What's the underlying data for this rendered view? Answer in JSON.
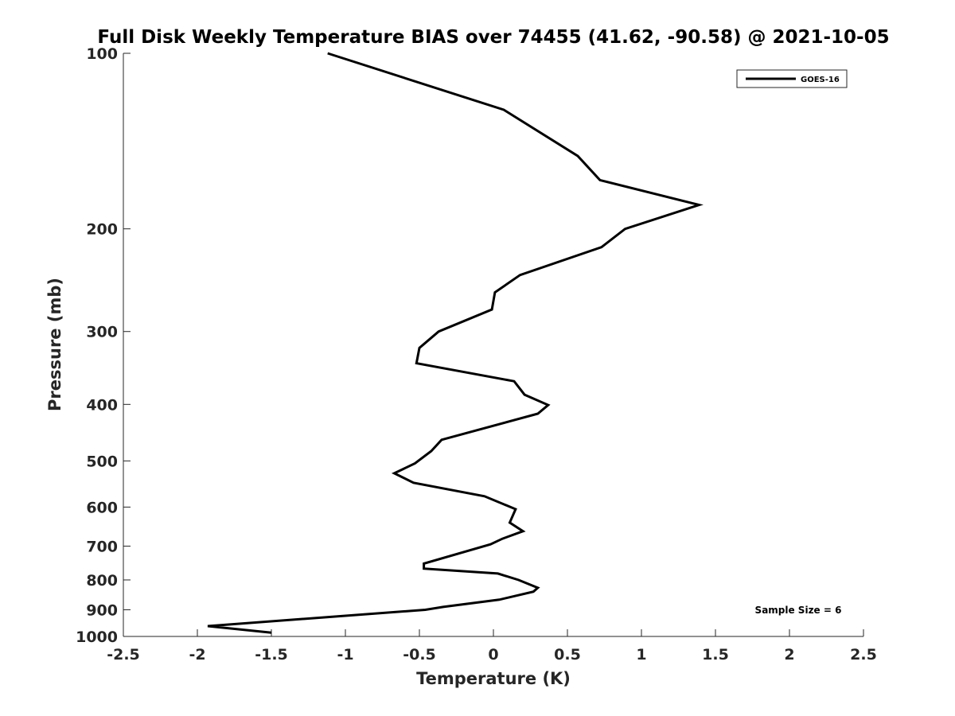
{
  "chart_data": {
    "type": "line",
    "title": "Full Disk Weekly Temperature BIAS over 74455 (41.62, -90.58) @ 2021-10-05",
    "xlabel": "Temperature (K)",
    "ylabel": "Pressure (mb)",
    "xlim": [
      -2.5,
      2.5
    ],
    "ylim": [
      100,
      1000
    ],
    "y_scale": "log",
    "y_reversed": true,
    "x_ticks": [
      "-2.5",
      "-2",
      "-1.5",
      "-1",
      "-0.5",
      "0",
      "0.5",
      "1",
      "1.5",
      "2",
      "2.5"
    ],
    "y_ticks": [
      "100",
      "200",
      "300",
      "400",
      "500",
      "600",
      "700",
      "800",
      "900",
      "1000"
    ],
    "grid": false,
    "legend": {
      "position": "top-right",
      "entries": [
        "GOES-16"
      ]
    },
    "annotation": "Sample Size = 6",
    "series": [
      {
        "name": "GOES-16",
        "color": "#000000",
        "points": [
          {
            "x": -1.12,
            "y": 100
          },
          {
            "x": 0.07,
            "y": 125
          },
          {
            "x": 0.57,
            "y": 150
          },
          {
            "x": 0.72,
            "y": 165
          },
          {
            "x": 1.39,
            "y": 182
          },
          {
            "x": 0.89,
            "y": 200
          },
          {
            "x": 0.73,
            "y": 215
          },
          {
            "x": 0.18,
            "y": 240
          },
          {
            "x": 0.01,
            "y": 257
          },
          {
            "x": -0.01,
            "y": 275
          },
          {
            "x": -0.37,
            "y": 300
          },
          {
            "x": -0.5,
            "y": 320
          },
          {
            "x": -0.52,
            "y": 340
          },
          {
            "x": 0.14,
            "y": 365
          },
          {
            "x": 0.21,
            "y": 385
          },
          {
            "x": 0.37,
            "y": 401
          },
          {
            "x": 0.3,
            "y": 415
          },
          {
            "x": -0.35,
            "y": 460
          },
          {
            "x": -0.42,
            "y": 481
          },
          {
            "x": -0.53,
            "y": 505
          },
          {
            "x": -0.67,
            "y": 525
          },
          {
            "x": -0.54,
            "y": 545
          },
          {
            "x": -0.06,
            "y": 575
          },
          {
            "x": 0.15,
            "y": 605
          },
          {
            "x": 0.11,
            "y": 638
          },
          {
            "x": 0.2,
            "y": 660
          },
          {
            "x": 0.06,
            "y": 680
          },
          {
            "x": -0.02,
            "y": 695
          },
          {
            "x": -0.47,
            "y": 750
          },
          {
            "x": -0.47,
            "y": 765
          },
          {
            "x": 0.03,
            "y": 780
          },
          {
            "x": 0.17,
            "y": 800
          },
          {
            "x": 0.3,
            "y": 825
          },
          {
            "x": 0.27,
            "y": 838
          },
          {
            "x": 0.04,
            "y": 865
          },
          {
            "x": -0.34,
            "y": 890
          },
          {
            "x": -0.46,
            "y": 900
          },
          {
            "x": -1.93,
            "y": 960
          },
          {
            "x": -1.5,
            "y": 985
          }
        ]
      }
    ]
  }
}
